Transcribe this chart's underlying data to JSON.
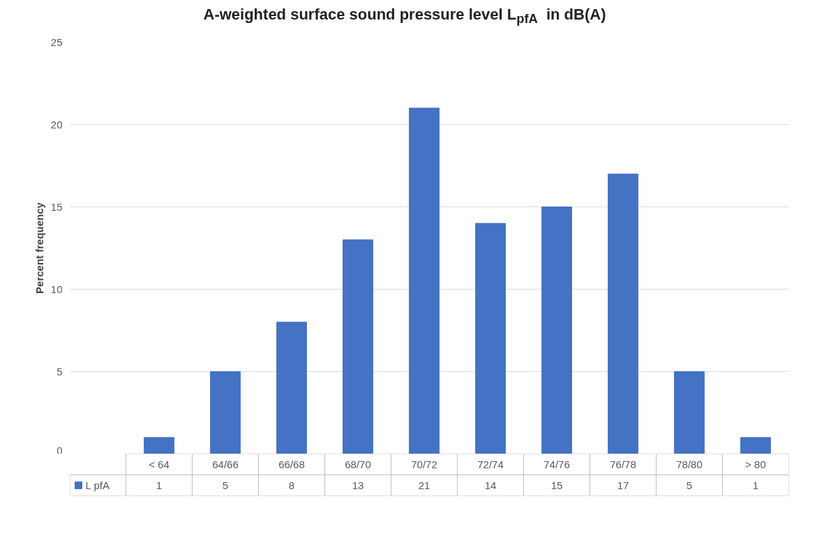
{
  "chart_data": {
    "type": "bar",
    "title": "A-weighted surface sound pressure level L$_{pfA}$  in dB(A)",
    "ylabel": "Percent frequency",
    "categories": [
      "< 64",
      "64/66",
      "66/68",
      "68/70",
      "70/72",
      "72/74",
      "74/76",
      "76/78",
      "78/80",
      "> 80"
    ],
    "series": [
      {
        "name": "L pfA",
        "color": "#4472c4",
        "values": [
          1,
          5,
          8,
          13,
          21,
          14,
          15,
          17,
          5,
          1
        ]
      }
    ],
    "ylim": [
      0,
      25
    ],
    "yticks": [
      0,
      5,
      10,
      15,
      20,
      25
    ],
    "grid": "y",
    "data_labels": true
  }
}
